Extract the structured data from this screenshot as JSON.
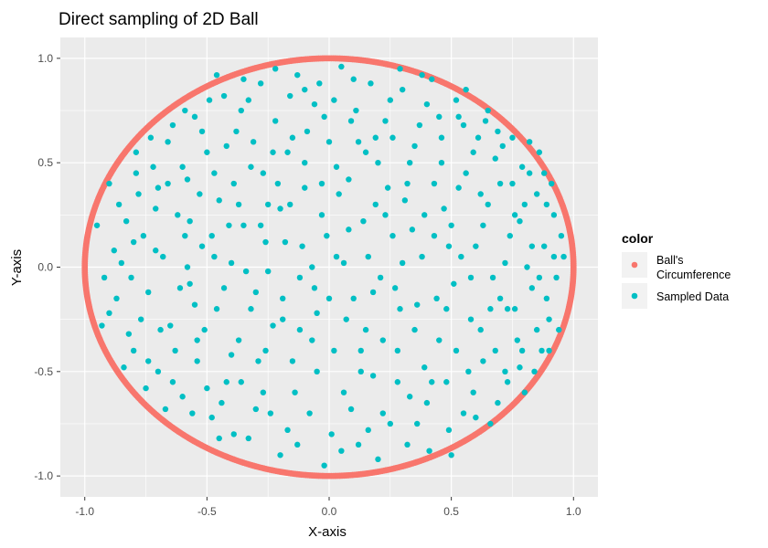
{
  "chart_data": {
    "type": "scatter",
    "title": "Direct sampling of 2D Ball",
    "xlabel": "X-axis",
    "ylabel": "Y-axis",
    "xlim": [
      -1.1,
      1.1
    ],
    "ylim": [
      -1.1,
      1.1
    ],
    "x_ticks": [
      -1.0,
      -0.5,
      0.0,
      0.5,
      1.0
    ],
    "y_ticks": [
      -1.0,
      -0.5,
      0.0,
      0.5,
      1.0
    ],
    "x_tick_labels": [
      "-1.0",
      "-0.5",
      "0.0",
      "0.5",
      "1.0"
    ],
    "y_tick_labels": [
      "-1.0",
      "-0.5",
      "0.0",
      "0.5",
      "1.0"
    ],
    "grid": true,
    "legend": {
      "title": "color",
      "position": "right",
      "entries": [
        {
          "label_lines": [
            "Ball's",
            "Circumference"
          ],
          "color": "#F8766D"
        },
        {
          "label_lines": [
            "Sampled Data"
          ],
          "color": "#00BFC4"
        }
      ]
    },
    "series": [
      {
        "name": "Ball's Circumference",
        "color": "#F8766D",
        "kind": "circle",
        "center": [
          0,
          0
        ],
        "radius": 1.0
      },
      {
        "name": "Sampled Data",
        "color": "#00BFC4",
        "kind": "points",
        "points": [
          [
            -0.95,
            0.2
          ],
          [
            -0.88,
            0.08
          ],
          [
            -0.9,
            -0.22
          ],
          [
            -0.85,
            0.02
          ],
          [
            -0.82,
            -0.32
          ],
          [
            -0.78,
            0.35
          ],
          [
            -0.8,
            -0.4
          ],
          [
            -0.76,
            0.15
          ],
          [
            -0.74,
            -0.12
          ],
          [
            -0.72,
            0.48
          ],
          [
            -0.7,
            -0.5
          ],
          [
            -0.68,
            0.05
          ],
          [
            -0.66,
            0.6
          ],
          [
            -0.65,
            -0.28
          ],
          [
            -0.62,
            0.25
          ],
          [
            -0.6,
            -0.62
          ],
          [
            -0.58,
            0.42
          ],
          [
            -0.57,
            -0.08
          ],
          [
            -0.55,
            0.72
          ],
          [
            -0.54,
            -0.45
          ],
          [
            -0.52,
            0.1
          ],
          [
            -0.5,
            0.55
          ],
          [
            -0.48,
            -0.72
          ],
          [
            -0.46,
            -0.2
          ],
          [
            -0.45,
            0.32
          ],
          [
            -0.43,
            0.82
          ],
          [
            -0.42,
            -0.55
          ],
          [
            -0.4,
            0.02
          ],
          [
            -0.38,
            0.65
          ],
          [
            -0.37,
            -0.35
          ],
          [
            -0.35,
            0.2
          ],
          [
            -0.33,
            -0.82
          ],
          [
            -0.32,
            0.48
          ],
          [
            -0.3,
            -0.12
          ],
          [
            -0.28,
            0.88
          ],
          [
            -0.27,
            -0.6
          ],
          [
            -0.25,
            0.3
          ],
          [
            -0.23,
            -0.28
          ],
          [
            -0.22,
            0.7
          ],
          [
            -0.2,
            -0.9
          ],
          [
            -0.18,
            0.12
          ],
          [
            -0.17,
            0.55
          ],
          [
            -0.15,
            -0.45
          ],
          [
            -0.13,
            0.92
          ],
          [
            -0.12,
            -0.05
          ],
          [
            -0.1,
            0.38
          ],
          [
            -0.08,
            -0.7
          ],
          [
            -0.06,
            0.78
          ],
          [
            -0.05,
            -0.22
          ],
          [
            -0.03,
            0.25
          ],
          [
            -0.02,
            -0.95
          ],
          [
            0.0,
            0.6
          ],
          [
            0.02,
            -0.4
          ],
          [
            0.03,
            0.05
          ],
          [
            0.05,
            0.96
          ],
          [
            0.06,
            -0.6
          ],
          [
            0.08,
            0.42
          ],
          [
            0.1,
            -0.15
          ],
          [
            0.11,
            0.75
          ],
          [
            0.12,
            -0.85
          ],
          [
            0.14,
            0.22
          ],
          [
            0.15,
            -0.3
          ],
          [
            0.17,
            0.88
          ],
          [
            0.18,
            -0.52
          ],
          [
            0.2,
            0.5
          ],
          [
            0.21,
            -0.05
          ],
          [
            0.23,
            0.7
          ],
          [
            0.25,
            -0.75
          ],
          [
            0.26,
            0.15
          ],
          [
            0.28,
            -0.4
          ],
          [
            0.3,
            0.85
          ],
          [
            0.31,
            0.32
          ],
          [
            0.33,
            -0.62
          ],
          [
            0.35,
            0.58
          ],
          [
            0.36,
            -0.18
          ],
          [
            0.38,
            0.05
          ],
          [
            0.4,
            0.78
          ],
          [
            0.41,
            -0.88
          ],
          [
            0.43,
            0.4
          ],
          [
            0.45,
            -0.35
          ],
          [
            0.46,
            0.62
          ],
          [
            0.48,
            -0.55
          ],
          [
            0.5,
            0.2
          ],
          [
            0.51,
            -0.08
          ],
          [
            0.53,
            0.72
          ],
          [
            0.55,
            -0.7
          ],
          [
            0.56,
            0.45
          ],
          [
            0.58,
            -0.25
          ],
          [
            0.6,
            0.1
          ],
          [
            0.61,
            0.62
          ],
          [
            0.63,
            -0.45
          ],
          [
            0.65,
            0.3
          ],
          [
            0.66,
            -0.75
          ],
          [
            0.68,
            0.52
          ],
          [
            0.7,
            -0.15
          ],
          [
            0.72,
            0.02
          ],
          [
            0.73,
            -0.55
          ],
          [
            0.75,
            0.4
          ],
          [
            0.77,
            -0.35
          ],
          [
            0.78,
            0.22
          ],
          [
            0.8,
            -0.6
          ],
          [
            0.82,
            0.45
          ],
          [
            0.83,
            -0.1
          ],
          [
            0.85,
            0.35
          ],
          [
            0.87,
            -0.4
          ],
          [
            0.88,
            0.1
          ],
          [
            0.9,
            -0.25
          ],
          [
            0.92,
            0.25
          ],
          [
            0.93,
            -0.05
          ],
          [
            0.95,
            0.15
          ],
          [
            -0.92,
            -0.05
          ],
          [
            -0.86,
            0.3
          ],
          [
            -0.84,
            -0.48
          ],
          [
            -0.79,
            0.55
          ],
          [
            -0.75,
            -0.58
          ],
          [
            -0.71,
            0.28
          ],
          [
            -0.69,
            -0.3
          ],
          [
            -0.64,
            0.68
          ],
          [
            -0.61,
            -0.1
          ],
          [
            -0.59,
            0.15
          ],
          [
            -0.56,
            -0.7
          ],
          [
            -0.53,
            0.35
          ],
          [
            -0.51,
            -0.3
          ],
          [
            -0.49,
            0.8
          ],
          [
            -0.47,
            0.45
          ],
          [
            -0.44,
            -0.65
          ],
          [
            -0.41,
            0.2
          ],
          [
            -0.39,
            -0.8
          ],
          [
            -0.36,
            0.75
          ],
          [
            -0.34,
            -0.02
          ],
          [
            -0.31,
            0.6
          ],
          [
            -0.29,
            -0.45
          ],
          [
            -0.26,
            0.12
          ],
          [
            -0.24,
            -0.7
          ],
          [
            -0.21,
            0.4
          ],
          [
            -0.19,
            -0.15
          ],
          [
            -0.16,
            0.82
          ],
          [
            -0.14,
            -0.6
          ],
          [
            -0.11,
            0.1
          ],
          [
            -0.09,
            0.65
          ],
          [
            -0.07,
            -0.35
          ],
          [
            -0.04,
            0.88
          ],
          [
            -0.01,
            0.15
          ],
          [
            0.01,
            -0.8
          ],
          [
            0.04,
            0.35
          ],
          [
            0.07,
            -0.25
          ],
          [
            0.09,
            0.7
          ],
          [
            0.13,
            -0.5
          ],
          [
            0.16,
            0.05
          ],
          [
            0.19,
            0.62
          ],
          [
            0.22,
            -0.7
          ],
          [
            0.24,
            0.38
          ],
          [
            0.27,
            -0.1
          ],
          [
            0.29,
            0.95
          ],
          [
            0.32,
            -0.85
          ],
          [
            0.34,
            0.18
          ],
          [
            0.37,
            0.68
          ],
          [
            0.39,
            -0.48
          ],
          [
            0.42,
            0.9
          ],
          [
            0.44,
            -0.15
          ],
          [
            0.47,
            0.28
          ],
          [
            0.49,
            -0.78
          ],
          [
            0.52,
            0.8
          ],
          [
            0.54,
            0.05
          ],
          [
            0.57,
            -0.5
          ],
          [
            0.59,
            0.55
          ],
          [
            0.62,
            -0.3
          ],
          [
            0.64,
            0.7
          ],
          [
            0.67,
            -0.05
          ],
          [
            0.69,
            -0.65
          ],
          [
            0.71,
            0.58
          ],
          [
            0.74,
            0.15
          ],
          [
            0.76,
            -0.2
          ],
          [
            0.79,
            0.48
          ],
          [
            0.81,
            0.0
          ],
          [
            0.84,
            -0.5
          ],
          [
            0.86,
            0.55
          ],
          [
            0.89,
            -0.15
          ],
          [
            0.91,
            0.4
          ],
          [
            0.94,
            -0.3
          ],
          [
            0.96,
            0.05
          ],
          [
            -0.9,
            0.4
          ],
          [
            -0.87,
            -0.15
          ],
          [
            -0.83,
            0.22
          ],
          [
            -0.8,
            0.12
          ],
          [
            -0.77,
            -0.25
          ],
          [
            -0.73,
            0.62
          ],
          [
            -0.7,
            0.38
          ],
          [
            -0.67,
            -0.68
          ],
          [
            -0.63,
            -0.4
          ],
          [
            -0.6,
            0.48
          ],
          [
            -0.58,
            0.0
          ],
          [
            -0.55,
            -0.18
          ],
          [
            -0.52,
            0.65
          ],
          [
            -0.5,
            -0.58
          ],
          [
            -0.47,
            0.05
          ],
          [
            -0.45,
            -0.82
          ],
          [
            -0.42,
            0.58
          ],
          [
            -0.4,
            -0.42
          ],
          [
            -0.37,
            0.3
          ],
          [
            -0.35,
            0.9
          ],
          [
            -0.32,
            -0.2
          ],
          [
            -0.3,
            -0.68
          ],
          [
            -0.27,
            0.45
          ],
          [
            -0.25,
            -0.02
          ],
          [
            -0.22,
            0.95
          ],
          [
            -0.2,
            0.28
          ],
          [
            -0.17,
            -0.78
          ],
          [
            -0.15,
            0.62
          ],
          [
            -0.12,
            -0.3
          ],
          [
            -0.1,
            0.85
          ],
          [
            -0.07,
            0.0
          ],
          [
            -0.05,
            -0.5
          ],
          [
            -0.02,
            0.72
          ],
          [
            0.0,
            -0.15
          ],
          [
            0.03,
            0.48
          ],
          [
            0.05,
            -0.88
          ],
          [
            0.08,
            0.18
          ],
          [
            0.1,
            0.9
          ],
          [
            0.13,
            -0.4
          ],
          [
            0.15,
            0.55
          ],
          [
            0.18,
            -0.12
          ],
          [
            0.2,
            -0.92
          ],
          [
            0.23,
            0.25
          ],
          [
            0.25,
            0.8
          ],
          [
            0.28,
            -0.55
          ],
          [
            0.3,
            0.02
          ],
          [
            0.33,
            0.5
          ],
          [
            0.35,
            -0.3
          ],
          [
            0.38,
            0.92
          ],
          [
            0.4,
            -0.65
          ],
          [
            0.43,
            0.15
          ],
          [
            0.45,
            0.72
          ],
          [
            0.48,
            -0.2
          ],
          [
            0.5,
            -0.9
          ],
          [
            0.53,
            0.38
          ],
          [
            0.55,
            0.68
          ],
          [
            0.58,
            -0.05
          ],
          [
            0.6,
            -0.72
          ],
          [
            0.63,
            0.2
          ],
          [
            0.65,
            0.75
          ],
          [
            0.68,
            -0.4
          ],
          [
            0.7,
            0.4
          ],
          [
            0.73,
            -0.2
          ],
          [
            0.75,
            0.62
          ],
          [
            0.78,
            -0.48
          ],
          [
            0.8,
            0.3
          ],
          [
            0.83,
            0.1
          ],
          [
            0.85,
            -0.3
          ],
          [
            0.88,
            0.45
          ],
          [
            0.9,
            -0.4
          ],
          [
            0.92,
            0.05
          ],
          [
            -0.93,
            -0.28
          ],
          [
            -0.81,
            -0.05
          ],
          [
            -0.79,
            0.45
          ],
          [
            -0.74,
            -0.45
          ],
          [
            -0.71,
            0.08
          ],
          [
            -0.66,
            0.4
          ],
          [
            -0.64,
            -0.55
          ],
          [
            -0.59,
            0.75
          ],
          [
            -0.57,
            0.22
          ],
          [
            -0.54,
            -0.35
          ],
          [
            -0.48,
            0.15
          ],
          [
            -0.46,
            0.92
          ],
          [
            -0.43,
            -0.1
          ],
          [
            -0.39,
            0.4
          ],
          [
            -0.36,
            -0.55
          ],
          [
            -0.33,
            0.8
          ],
          [
            -0.28,
            0.2
          ],
          [
            -0.26,
            -0.4
          ],
          [
            -0.23,
            0.55
          ],
          [
            -0.19,
            -0.25
          ],
          [
            -0.16,
            0.3
          ],
          [
            -0.13,
            -0.85
          ],
          [
            -0.1,
            0.5
          ],
          [
            -0.06,
            -0.1
          ],
          [
            -0.03,
            0.4
          ],
          [
            0.02,
            0.8
          ],
          [
            0.06,
            0.02
          ],
          [
            0.09,
            -0.68
          ],
          [
            0.12,
            0.6
          ],
          [
            0.16,
            -0.78
          ],
          [
            0.19,
            0.3
          ],
          [
            0.22,
            -0.35
          ],
          [
            0.26,
            0.62
          ],
          [
            0.29,
            -0.2
          ],
          [
            0.32,
            0.4
          ],
          [
            0.36,
            -0.75
          ],
          [
            0.39,
            0.25
          ],
          [
            0.42,
            -0.55
          ],
          [
            0.46,
            0.5
          ],
          [
            0.49,
            0.1
          ],
          [
            0.52,
            -0.4
          ],
          [
            0.56,
            0.85
          ],
          [
            0.59,
            -0.6
          ],
          [
            0.62,
            0.35
          ],
          [
            0.66,
            -0.2
          ],
          [
            0.69,
            0.65
          ],
          [
            0.72,
            -0.5
          ],
          [
            0.76,
            0.25
          ],
          [
            0.79,
            -0.4
          ],
          [
            0.82,
            0.6
          ],
          [
            0.86,
            -0.05
          ],
          [
            0.89,
            0.3
          ]
        ]
      }
    ]
  }
}
